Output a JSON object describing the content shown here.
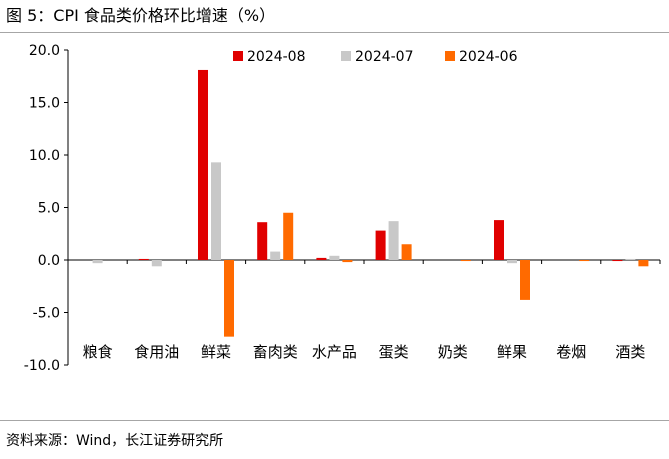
{
  "figure": {
    "title": "图 5：CPI 食品类价格环比增速（%）",
    "source": "资料来源：Wind，长江证券研究所"
  },
  "colors": {
    "series": [
      "#e00000",
      "#c8c8c8",
      "#ff6a00"
    ],
    "axis": "#000000"
  },
  "chart_data": {
    "type": "bar",
    "title": "CPI 食品类价格环比增速（%）",
    "categories": [
      "粮食",
      "食用油",
      "鲜菜",
      "畜肉类",
      "水产品",
      "蛋类",
      "奶类",
      "鲜果",
      "卷烟",
      "酒类"
    ],
    "series": [
      {
        "name": "2024-08",
        "values": [
          0.0,
          0.1,
          18.1,
          3.6,
          0.2,
          2.8,
          0.0,
          3.8,
          0.0,
          -0.1
        ]
      },
      {
        "name": "2024-07",
        "values": [
          -0.3,
          -0.6,
          9.3,
          0.8,
          0.4,
          3.7,
          0.0,
          -0.3,
          0.0,
          0.1
        ]
      },
      {
        "name": "2024-06",
        "values": [
          0.0,
          0.0,
          -7.3,
          4.5,
          -0.2,
          1.5,
          -0.1,
          -3.8,
          -0.1,
          -0.6
        ]
      }
    ],
    "ylim": [
      -10,
      20
    ],
    "yticks": [
      -10,
      -5,
      0,
      5,
      10,
      15,
      20
    ],
    "ytick_labels": [
      "-10.0",
      "-5.0",
      "0.0",
      "5.0",
      "10.0",
      "15.0",
      "20.0"
    ],
    "xlabel": "",
    "ylabel": "",
    "legend_position": "top-center",
    "grid": false
  }
}
